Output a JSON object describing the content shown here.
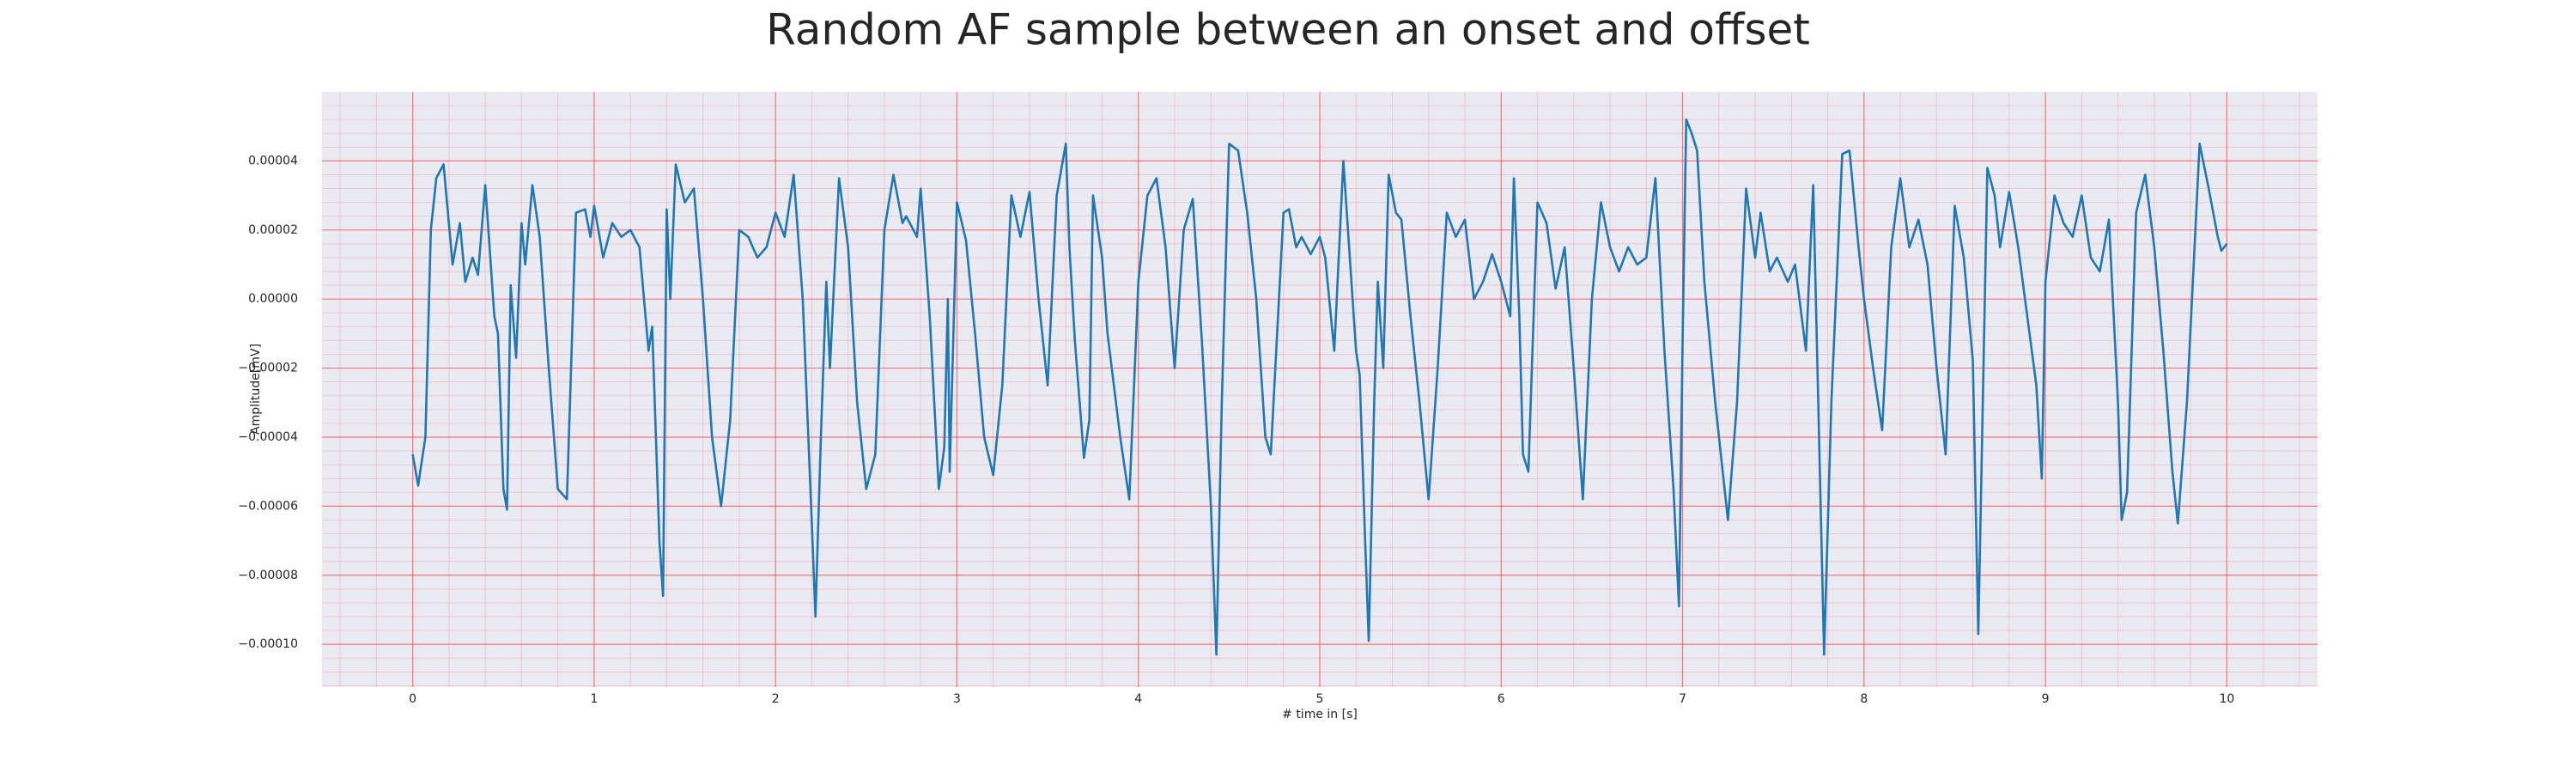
{
  "chart_data": {
    "type": "line",
    "title": "Random AF sample between an onset and offset",
    "xlabel": "# time in [s]",
    "ylabel": "Amplitude[mV]",
    "x": [
      0,
      0.03,
      0.07,
      0.1,
      0.13,
      0.17,
      0.22,
      0.26,
      0.29,
      0.33,
      0.36,
      0.4,
      0.45,
      0.47,
      0.5,
      0.52,
      0.54,
      0.57,
      0.6,
      0.62,
      0.66,
      0.7,
      0.75,
      0.8,
      0.85,
      0.9,
      0.95,
      0.98,
      1.0,
      1.05,
      1.1,
      1.15,
      1.2,
      1.25,
      1.3,
      1.32,
      1.36,
      1.38,
      1.4,
      1.42,
      1.45,
      1.5,
      1.55,
      1.6,
      1.65,
      1.7,
      1.75,
      1.8,
      1.85,
      1.9,
      1.95,
      2.0,
      2.05,
      2.1,
      2.15,
      2.2,
      2.22,
      2.25,
      2.28,
      2.3,
      2.35,
      2.4,
      2.45,
      2.5,
      2.55,
      2.6,
      2.65,
      2.7,
      2.72,
      2.78,
      2.8,
      2.85,
      2.9,
      2.93,
      2.95,
      2.96,
      3.0,
      3.05,
      3.1,
      3.15,
      3.2,
      3.25,
      3.3,
      3.35,
      3.4,
      3.45,
      3.5,
      3.55,
      3.6,
      3.62,
      3.65,
      3.7,
      3.73,
      3.75,
      3.8,
      3.83,
      3.9,
      3.95,
      4.0,
      4.05,
      4.1,
      4.15,
      4.2,
      4.25,
      4.3,
      4.35,
      4.4,
      4.43,
      4.46,
      4.5,
      4.55,
      4.6,
      4.65,
      4.7,
      4.73,
      4.75,
      4.8,
      4.83,
      4.87,
      4.9,
      4.95,
      5.0,
      5.03,
      5.08,
      5.13,
      5.2,
      5.22,
      5.25,
      5.27,
      5.3,
      5.32,
      5.35,
      5.38,
      5.42,
      5.45,
      5.5,
      5.55,
      5.6,
      5.65,
      5.7,
      5.75,
      5.8,
      5.85,
      5.9,
      5.95,
      6.0,
      6.05,
      6.07,
      6.1,
      6.12,
      6.15,
      6.2,
      6.25,
      6.3,
      6.35,
      6.4,
      6.45,
      6.5,
      6.55,
      6.6,
      6.65,
      6.7,
      6.75,
      6.8,
      6.85,
      6.9,
      6.95,
      6.98,
      7.0,
      7.02,
      7.05,
      7.08,
      7.12,
      7.18,
      7.25,
      7.3,
      7.35,
      7.4,
      7.43,
      7.48,
      7.52,
      7.58,
      7.62,
      7.68,
      7.72,
      7.78,
      7.82,
      7.88,
      7.92,
      7.97,
      8.0,
      8.05,
      8.1,
      8.15,
      8.2,
      8.25,
      8.3,
      8.35,
      8.4,
      8.45,
      8.5,
      8.55,
      8.6,
      8.63,
      8.68,
      8.72,
      8.75,
      8.8,
      8.85,
      8.9,
      8.95,
      8.98,
      9.0,
      9.05,
      9.1,
      9.15,
      9.2,
      9.25,
      9.3,
      9.35,
      9.4,
      9.42,
      9.45,
      9.5,
      9.55,
      9.6,
      9.65,
      9.7,
      9.73,
      9.78,
      9.85,
      9.9,
      9.95,
      9.97,
      10.0
    ],
    "values": [
      -4.5e-05,
      -5.4e-05,
      -4e-05,
      2e-05,
      3.5e-05,
      3.9e-05,
      1e-05,
      2.2e-05,
      5e-06,
      1.2e-05,
      7e-06,
      3.3e-05,
      -5e-06,
      -1e-05,
      -5.5e-05,
      -6.1e-05,
      4e-06,
      -1.7e-05,
      2.2e-05,
      1e-05,
      3.3e-05,
      1.8e-05,
      -2e-05,
      -5.5e-05,
      -5.8e-05,
      2.5e-05,
      2.6e-05,
      1.8e-05,
      2.7e-05,
      1.2e-05,
      2.2e-05,
      1.8e-05,
      2e-05,
      1.5e-05,
      -1.5e-05,
      -8e-06,
      -7e-05,
      -8.6e-05,
      2.6e-05,
      0,
      3.9e-05,
      2.8e-05,
      3.2e-05,
      0,
      -4e-05,
      -6e-05,
      -3.5e-05,
      2e-05,
      1.8e-05,
      1.2e-05,
      1.5e-05,
      2.5e-05,
      1.8e-05,
      3.6e-05,
      0,
      -6.5e-05,
      -9.2e-05,
      -4e-05,
      5e-06,
      -2e-05,
      3.5e-05,
      1.5e-05,
      -3e-05,
      -5.5e-05,
      -4.5e-05,
      2e-05,
      3.6e-05,
      2.2e-05,
      2.4e-05,
      1.8e-05,
      3.2e-05,
      -5e-06,
      -5.5e-05,
      -4.3e-05,
      0,
      -5e-05,
      2.8e-05,
      1.7e-05,
      -1e-05,
      -4e-05,
      -5.1e-05,
      -2.5e-05,
      3e-05,
      1.8e-05,
      3.1e-05,
      0,
      -2.5e-05,
      3e-05,
      4.5e-05,
      1.5e-05,
      -1.2e-05,
      -4.6e-05,
      -3.5e-05,
      3e-05,
      1.2e-05,
      -1e-05,
      -4e-05,
      -5.8e-05,
      5e-06,
      3e-05,
      3.5e-05,
      1.5e-05,
      -2e-05,
      2e-05,
      2.9e-05,
      -1.2e-05,
      -6e-05,
      -0.000103,
      -3e-05,
      4.5e-05,
      4.3e-05,
      2.5e-05,
      0,
      -4e-05,
      -4.5e-05,
      -2.5e-05,
      2.5e-05,
      2.6e-05,
      1.5e-05,
      1.8e-05,
      1.3e-05,
      1.8e-05,
      1.2e-05,
      -1.5e-05,
      4e-05,
      -1.5e-05,
      -2.2e-05,
      -7e-05,
      -9.9e-05,
      -3e-05,
      5e-06,
      -2e-05,
      3.6e-05,
      2.5e-05,
      2.3e-05,
      -5e-06,
      -3e-05,
      -5.8e-05,
      -2e-05,
      2.5e-05,
      1.8e-05,
      2.3e-05,
      0,
      5e-06,
      1.3e-05,
      5e-06,
      -5e-06,
      3.5e-05,
      -5e-06,
      -4.5e-05,
      -5e-05,
      2.8e-05,
      2.2e-05,
      3e-06,
      1.5e-05,
      -2e-05,
      -5.8e-05,
      0,
      2.8e-05,
      1.5e-05,
      8e-06,
      1.5e-05,
      1e-05,
      1.2e-05,
      3.5e-05,
      -1.5e-05,
      -5.5e-05,
      -8.9e-05,
      -1.2e-05,
      5.2e-05,
      4.8e-05,
      4.3e-05,
      5e-06,
      -3e-05,
      -6.4e-05,
      -3e-05,
      3.2e-05,
      1.2e-05,
      2.5e-05,
      8e-06,
      1.2e-05,
      5e-06,
      1e-05,
      -1.5e-05,
      3.3e-05,
      -0.000103,
      -3e-05,
      4.2e-05,
      4.3e-05,
      1.5e-05,
      0,
      -2e-05,
      -3.8e-05,
      1.5e-05,
      3.5e-05,
      1.5e-05,
      2.3e-05,
      1e-05,
      -2e-05,
      -4.5e-05,
      2.7e-05,
      1.2e-05,
      -1.8e-05,
      -9.7e-05,
      3.8e-05,
      3e-05,
      1.5e-05,
      3.1e-05,
      1.5e-05,
      -5e-06,
      -2.5e-05,
      -5.2e-05,
      5e-06,
      3e-05,
      2.2e-05,
      1.8e-05,
      3e-05,
      1.2e-05,
      8e-06,
      2.3e-05,
      -3e-05,
      -6.4e-05,
      -5.6e-05,
      2.5e-05,
      3.6e-05,
      1.5e-05,
      -1.5e-05,
      -5e-05,
      -6.5e-05,
      -3e-05,
      4.5e-05,
      3.2e-05,
      1.8e-05,
      1.4e-05,
      1.6e-05
    ],
    "color": "#1f77b4",
    "xlim": [
      -0.5,
      10.5
    ],
    "ylim": [
      -0.0001124,
      6e-05
    ],
    "xticks": [
      0,
      1,
      2,
      3,
      4,
      5,
      6,
      7,
      8,
      9,
      10
    ],
    "yticks": [
      {
        "value": -0.0001,
        "label": "−0.00010"
      },
      {
        "value": -8e-05,
        "label": "−0.00008"
      },
      {
        "value": -6e-05,
        "label": "−0.00006"
      },
      {
        "value": -4e-05,
        "label": "−0.00004"
      },
      {
        "value": -2e-05,
        "label": "−0.00002"
      },
      {
        "value": 0,
        "label": "0.00000"
      },
      2e-05,
      4e-05
    ],
    "grid": true,
    "grid_color": "#ff4d4d",
    "minor_grid": true,
    "background": "#eaeaf2"
  }
}
